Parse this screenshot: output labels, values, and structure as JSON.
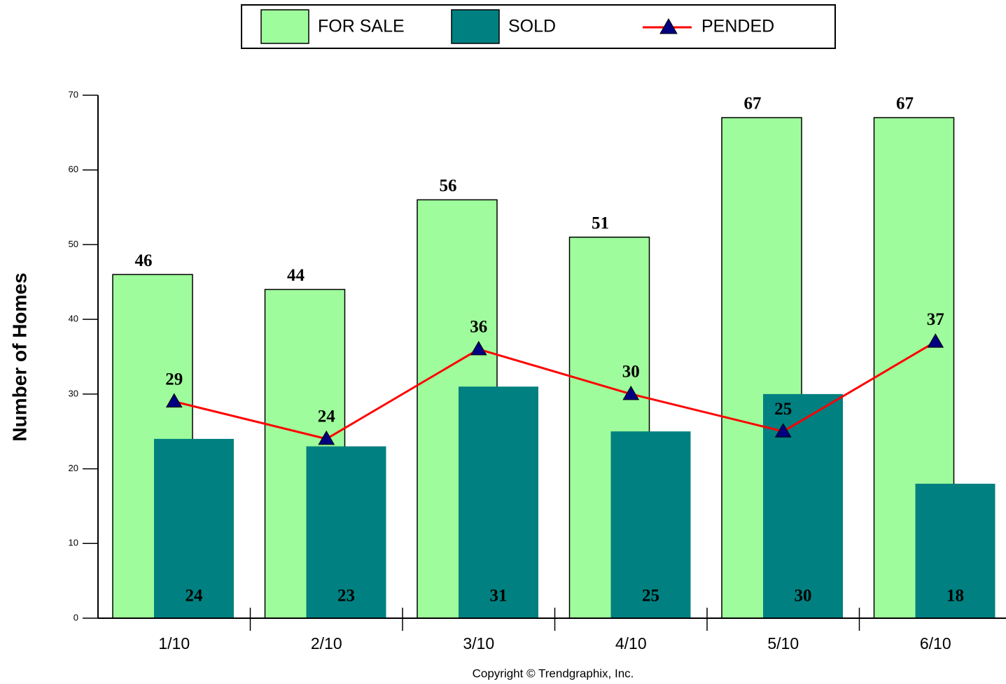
{
  "chart_data": {
    "type": "bar",
    "categories": [
      "1/10",
      "2/10",
      "3/10",
      "4/10",
      "5/10",
      "6/10"
    ],
    "series": [
      {
        "name": "FOR SALE",
        "type": "bar",
        "color": "#9ffc9c",
        "values": [
          46,
          44,
          56,
          51,
          67,
          67
        ]
      },
      {
        "name": "SOLD",
        "type": "bar",
        "color": "#008080",
        "values": [
          24,
          23,
          31,
          25,
          30,
          18
        ]
      },
      {
        "name": "PENDED",
        "type": "line",
        "color": "#ff0000",
        "marker_color": "#000080",
        "values": [
          29,
          24,
          36,
          30,
          25,
          37
        ]
      }
    ],
    "ylabel": "Number of Homes",
    "ylim": [
      0,
      70
    ],
    "yticks": [
      0,
      10,
      20,
      30,
      40,
      50,
      60,
      70
    ],
    "copyright": "Copyright © Trendgraphix, Inc."
  }
}
